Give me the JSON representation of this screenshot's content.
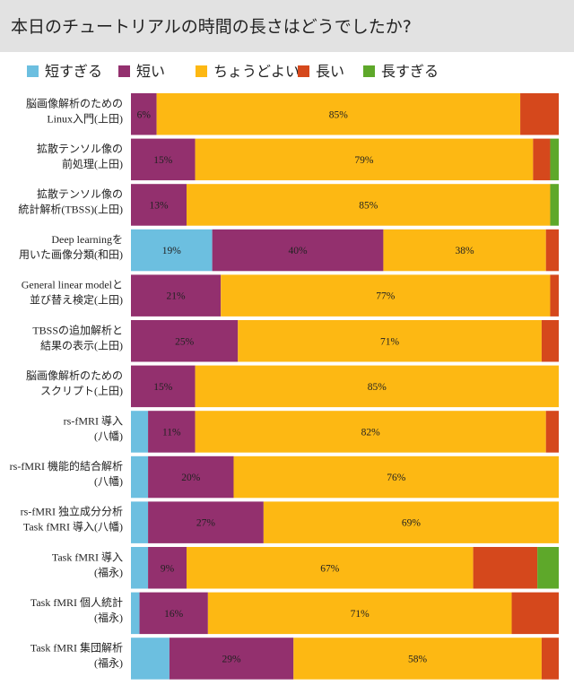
{
  "chart_data": {
    "type": "stacked-bar-horizontal",
    "title": "本日のチュートリアルの時間の長さはどうでしたか?",
    "categories": [
      [
        "脳画像解析のための",
        "Linux入門(上田)"
      ],
      [
        "拡散テンソル像の",
        "前処理(上田)"
      ],
      [
        "拡散テンソル像の",
        "統計解析(TBSS)(上田)"
      ],
      [
        "Deep learningを",
        "用いた画像分類(和田)"
      ],
      [
        "General linear modelと",
        "並び替え検定(上田)"
      ],
      [
        "TBSSの追加解析と",
        "結果の表示(上田)"
      ],
      [
        "脳画像解析のための",
        "スクリプト(上田)"
      ],
      [
        "rs-fMRI 導入",
        "(八幡)"
      ],
      [
        "rs-fMRI 機能的結合解析",
        "(八幡)"
      ],
      [
        "rs-fMRI 独立成分分析",
        "Task fMRI 導入(八幡)"
      ],
      [
        "Task fMRI 導入",
        "(福永)"
      ],
      [
        "Task fMRI 個人統計",
        "(福永)"
      ],
      [
        "Task fMRI 集団解析",
        "(福永)"
      ]
    ],
    "xlim": [
      0,
      100
    ],
    "series": [
      {
        "name": "短すぎる",
        "color": "#6cbfe0",
        "values": [
          0,
          0,
          0,
          19,
          0,
          0,
          0,
          4,
          4,
          4,
          4,
          2,
          9
        ],
        "value_labels": [
          null,
          null,
          null,
          "19%",
          null,
          null,
          null,
          null,
          null,
          null,
          null,
          null,
          null
        ]
      },
      {
        "name": "短い",
        "color": "#93306e",
        "values": [
          6,
          15,
          13,
          40,
          21,
          25,
          15,
          11,
          20,
          27,
          9,
          16,
          29
        ],
        "value_labels": [
          "6%",
          "15%",
          "13%",
          "40%",
          "21%",
          "25%",
          "15%",
          "11%",
          "20%",
          "27%",
          "9%",
          "16%",
          "29%"
        ]
      },
      {
        "name": "ちょうどよい",
        "color": "#fdb813",
        "values": [
          85,
          79,
          85,
          38,
          77,
          71,
          85,
          82,
          76,
          69,
          67,
          71,
          58
        ],
        "value_labels": [
          "85%",
          "79%",
          "85%",
          "38%",
          "77%",
          "71%",
          "85%",
          "82%",
          "76%",
          "69%",
          "67%",
          "71%",
          "58%"
        ]
      },
      {
        "name": "長い",
        "color": "#d5481c",
        "values": [
          9,
          4,
          0,
          3,
          2,
          4,
          0,
          3,
          0,
          0,
          15,
          11,
          4
        ],
        "value_labels": [
          null,
          null,
          null,
          null,
          null,
          null,
          null,
          null,
          null,
          null,
          null,
          null,
          null
        ]
      },
      {
        "name": "長すぎる",
        "color": "#5ea82a",
        "values": [
          0,
          2,
          2,
          0,
          0,
          0,
          0,
          0,
          0,
          0,
          5,
          0,
          0
        ],
        "value_labels": [
          null,
          null,
          null,
          null,
          null,
          null,
          null,
          null,
          null,
          null,
          null,
          null,
          null
        ]
      }
    ]
  }
}
